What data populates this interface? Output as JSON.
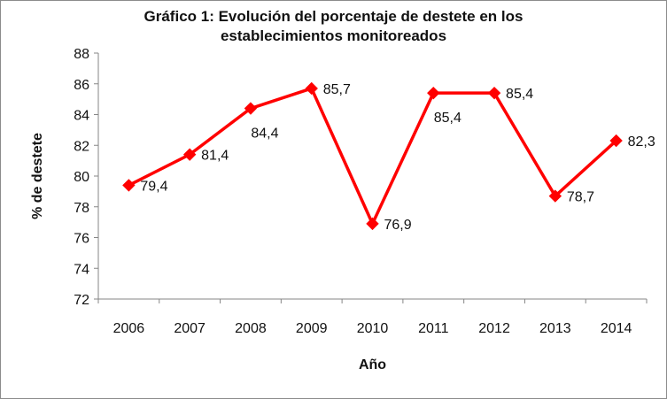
{
  "chart_data": {
    "type": "line",
    "title_lines": [
      "Gráfico 1: Evolución del porcentaje de destete en los",
      "establecimientos monitoreados"
    ],
    "xlabel": "Año",
    "ylabel": "% de destete",
    "categories": [
      "2006",
      "2007",
      "2008",
      "2009",
      "2010",
      "2011",
      "2012",
      "2013",
      "2014"
    ],
    "series": [
      {
        "name": "% de destete",
        "values": [
          79.4,
          81.4,
          84.4,
          85.7,
          76.9,
          85.4,
          85.4,
          78.7,
          82.3
        ],
        "labels": [
          "79,4",
          "81,4",
          "84,4",
          "85,7",
          "76,9",
          "85,4",
          "85,4",
          "78,7",
          "82,3"
        ],
        "label_positions": [
          "right",
          "right",
          "below",
          "right",
          "right",
          "below",
          "right",
          "right",
          "right"
        ],
        "color": "#ff0000",
        "marker": "diamond"
      }
    ],
    "ylim": [
      72,
      88
    ],
    "yticks": [
      72,
      74,
      76,
      78,
      80,
      82,
      84,
      86,
      88
    ],
    "grid": false,
    "legend": "none"
  },
  "colors": {
    "series": "#ff0000",
    "axis": "#868686",
    "text": "#111111"
  }
}
